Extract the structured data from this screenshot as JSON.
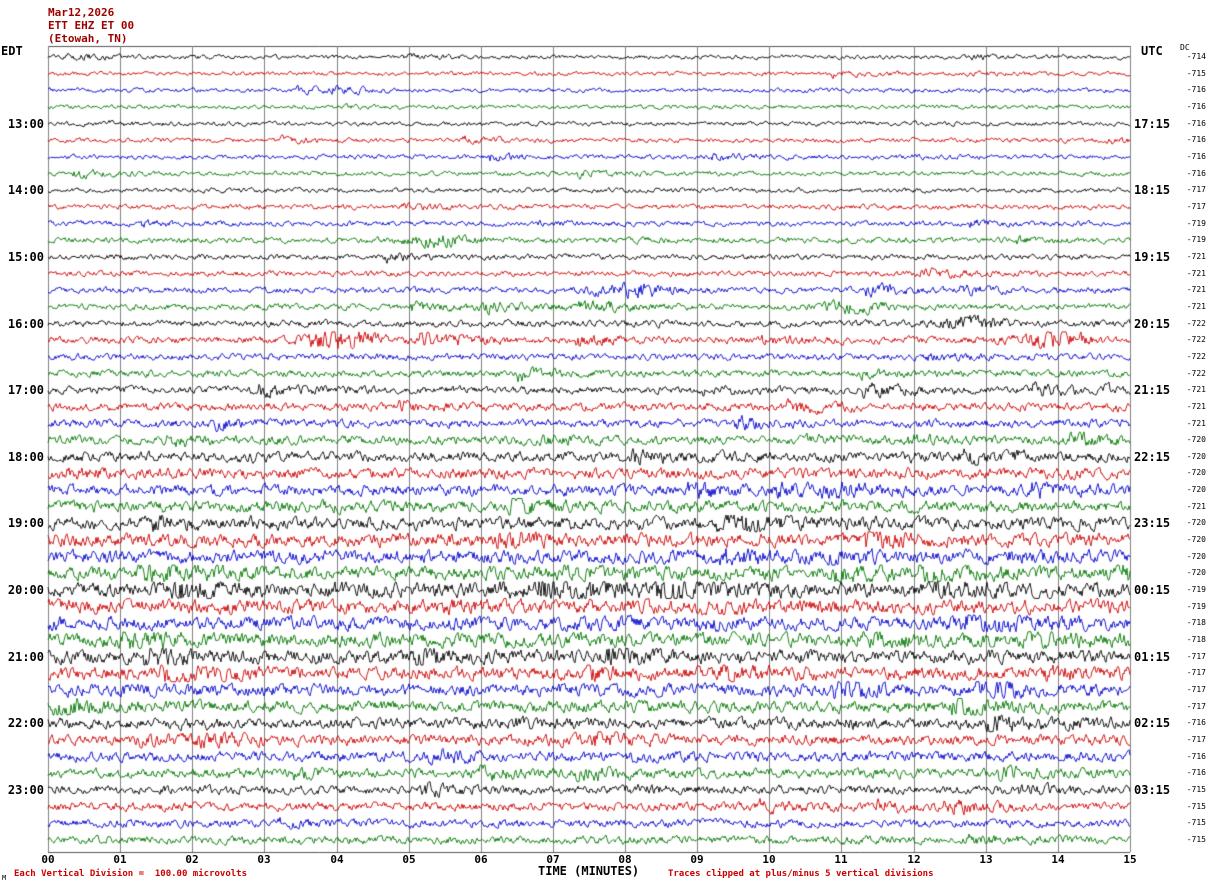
{
  "header": {
    "date": "Mar12,2026",
    "station": "ETT EHZ ET 00",
    "location": "(Etowah, TN)",
    "left_tz": "EDT",
    "right_tz": "UTC",
    "dc_label": "DC"
  },
  "footer": {
    "x_axis_label": "TIME (MINUTES)",
    "left_note": "Each Vertical Division =  100.00 microvolts",
    "right_note": "Traces clipped at plus/minus 5 vertical divisions",
    "corner_mark": "M",
    "x_ticks": [
      "00",
      "01",
      "02",
      "03",
      "04",
      "05",
      "06",
      "07",
      "08",
      "09",
      "10",
      "11",
      "12",
      "13",
      "14",
      "15"
    ]
  },
  "colors": {
    "trace_map": {
      "black": "#000000",
      "red": "#cc0000",
      "blue": "#0000cc",
      "green": "#007700"
    },
    "grid": "#808080",
    "frame": "#555555",
    "note": "#cc0000",
    "title": "#9e0000"
  },
  "chart_data": {
    "type": "line",
    "subtype": "helicorder seismogram",
    "title": "ETT EHZ ET 00 (Etowah, TN) Mar12,2026",
    "xlabel": "TIME (MINUTES)",
    "x_range_minutes": [
      0,
      15
    ],
    "minutes_per_row": 15,
    "row_order": "top to bottom; colors cycle black/red/blue/green; 4 rows per hour; left labels EDT, right labels UTC, far-right column is DC offset in counts",
    "rows": [
      {
        "edt": "",
        "utc": "",
        "dc": -714,
        "color": "black",
        "amp": 1.6
      },
      {
        "edt": "",
        "utc": "",
        "dc": -715,
        "color": "red",
        "amp": 1.6
      },
      {
        "edt": "",
        "utc": "",
        "dc": -716,
        "color": "blue",
        "amp": 1.7
      },
      {
        "edt": "",
        "utc": "",
        "dc": -716,
        "color": "green",
        "amp": 1.7
      },
      {
        "edt": "13:00",
        "utc": "17:15",
        "dc": -716,
        "color": "black",
        "amp": 1.7
      },
      {
        "edt": "",
        "utc": "",
        "dc": -716,
        "color": "red",
        "amp": 1.8
      },
      {
        "edt": "",
        "utc": "",
        "dc": -716,
        "color": "blue",
        "amp": 1.8
      },
      {
        "edt": "",
        "utc": "",
        "dc": -716,
        "color": "green",
        "amp": 1.8
      },
      {
        "edt": "14:00",
        "utc": "18:15",
        "dc": -717,
        "color": "black",
        "amp": 1.9
      },
      {
        "edt": "",
        "utc": "",
        "dc": -717,
        "color": "red",
        "amp": 2.0
      },
      {
        "edt": "",
        "utc": "",
        "dc": -719,
        "color": "blue",
        "amp": 2.1
      },
      {
        "edt": "",
        "utc": "",
        "dc": -719,
        "color": "green",
        "amp": 2.2,
        "events": [
          {
            "minute": 5.4,
            "scale": 1.8
          }
        ]
      },
      {
        "edt": "15:00",
        "utc": "19:15",
        "dc": -721,
        "color": "black",
        "amp": 2.2
      },
      {
        "edt": "",
        "utc": "",
        "dc": -721,
        "color": "red",
        "amp": 2.2
      },
      {
        "edt": "",
        "utc": "",
        "dc": -721,
        "color": "blue",
        "amp": 2.4,
        "events": [
          {
            "minute": 8.1,
            "scale": 2.2
          }
        ]
      },
      {
        "edt": "",
        "utc": "",
        "dc": -721,
        "color": "green",
        "amp": 2.4,
        "events": [
          {
            "minute": 11.2,
            "scale": 1.5
          }
        ]
      },
      {
        "edt": "16:00",
        "utc": "20:15",
        "dc": -722,
        "color": "black",
        "amp": 2.7,
        "events": [
          {
            "minute": 12.8,
            "scale": 1.6
          }
        ]
      },
      {
        "edt": "",
        "utc": "",
        "dc": -722,
        "color": "red",
        "amp": 2.8,
        "events": [
          {
            "minute": 4.05,
            "scale": 2.6
          },
          {
            "minute": 13.9,
            "scale": 2.2
          }
        ]
      },
      {
        "edt": "",
        "utc": "",
        "dc": -722,
        "color": "blue",
        "amp": 2.6
      },
      {
        "edt": "",
        "utc": "",
        "dc": -722,
        "color": "green",
        "amp": 2.7
      },
      {
        "edt": "17:00",
        "utc": "21:15",
        "dc": -721,
        "color": "black",
        "amp": 3.0
      },
      {
        "edt": "",
        "utc": "",
        "dc": -721,
        "color": "red",
        "amp": 3.2
      },
      {
        "edt": "",
        "utc": "",
        "dc": -721,
        "color": "blue",
        "amp": 3.2
      },
      {
        "edt": "",
        "utc": "",
        "dc": -720,
        "color": "green",
        "amp": 3.4
      },
      {
        "edt": "18:00",
        "utc": "22:15",
        "dc": -720,
        "color": "black",
        "amp": 4.0
      },
      {
        "edt": "",
        "utc": "",
        "dc": -720,
        "color": "red",
        "amp": 4.2
      },
      {
        "edt": "",
        "utc": "",
        "dc": -720,
        "color": "blue",
        "amp": 4.4
      },
      {
        "edt": "",
        "utc": "",
        "dc": -721,
        "color": "green",
        "amp": 4.6
      },
      {
        "edt": "19:00",
        "utc": "23:15",
        "dc": -720,
        "color": "black",
        "amp": 5.0
      },
      {
        "edt": "",
        "utc": "",
        "dc": -720,
        "color": "red",
        "amp": 5.2
      },
      {
        "edt": "",
        "utc": "",
        "dc": -720,
        "color": "blue",
        "amp": 5.2
      },
      {
        "edt": "",
        "utc": "",
        "dc": -720,
        "color": "green",
        "amp": 5.4
      },
      {
        "edt": "20:00",
        "utc": "00:15",
        "dc": -719,
        "color": "black",
        "amp": 5.6
      },
      {
        "edt": "",
        "utc": "",
        "dc": -719,
        "color": "red",
        "amp": 5.6
      },
      {
        "edt": "",
        "utc": "",
        "dc": -718,
        "color": "blue",
        "amp": 5.4
      },
      {
        "edt": "",
        "utc": "",
        "dc": -718,
        "color": "green",
        "amp": 5.6
      },
      {
        "edt": "21:00",
        "utc": "01:15",
        "dc": -717,
        "color": "black",
        "amp": 5.2
      },
      {
        "edt": "",
        "utc": "",
        "dc": -717,
        "color": "red",
        "amp": 5.0
      },
      {
        "edt": "",
        "utc": "",
        "dc": -717,
        "color": "blue",
        "amp": 4.8
      },
      {
        "edt": "",
        "utc": "",
        "dc": -717,
        "color": "green",
        "amp": 4.6
      },
      {
        "edt": "22:00",
        "utc": "02:15",
        "dc": -716,
        "color": "black",
        "amp": 4.2
      },
      {
        "edt": "",
        "utc": "",
        "dc": -717,
        "color": "red",
        "amp": 4.2
      },
      {
        "edt": "",
        "utc": "",
        "dc": -716,
        "color": "blue",
        "amp": 4.0
      },
      {
        "edt": "",
        "utc": "",
        "dc": -716,
        "color": "green",
        "amp": 3.8
      },
      {
        "edt": "23:00",
        "utc": "03:15",
        "dc": -715,
        "color": "black",
        "amp": 3.4
      },
      {
        "edt": "",
        "utc": "",
        "dc": -715,
        "color": "red",
        "amp": 3.4
      },
      {
        "edt": "",
        "utc": "",
        "dc": -715,
        "color": "blue",
        "amp": 3.2
      },
      {
        "edt": "",
        "utc": "",
        "dc": -715,
        "color": "green",
        "amp": 3.2
      }
    ]
  }
}
